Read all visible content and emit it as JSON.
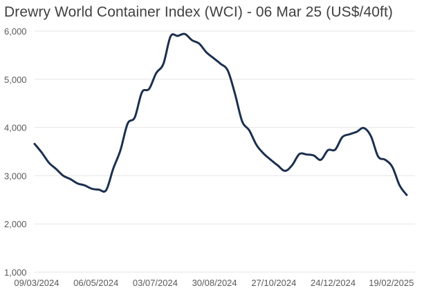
{
  "chart_data": {
    "type": "line",
    "title": "Drewry World Container Index (WCI) - 06 Mar 25 (US$/40ft)",
    "xlabel": "",
    "ylabel": "",
    "ylim": [
      1000,
      6000
    ],
    "xlim": [
      "2024-03-07",
      "2025-03-06"
    ],
    "grid": true,
    "x_tick_labels": [
      "09/03/2024",
      "06/05/2024",
      "03/07/2024",
      "30/08/2024",
      "27/10/2024",
      "24/12/2024",
      "19/02/2025"
    ],
    "x_tick_dates": [
      "2024-03-09",
      "2024-05-06",
      "2024-07-03",
      "2024-08-30",
      "2024-10-27",
      "2024-12-24",
      "2025-02-19"
    ],
    "y_ticks": [
      1000,
      2000,
      3000,
      4000,
      5000,
      6000
    ],
    "y_tick_labels": [
      "1,000",
      "2,000",
      "3,000",
      "4,000",
      "5,000",
      "6,000"
    ],
    "line_color": "#1b2f4e",
    "grid_color": "#e6e6e6",
    "series": [
      {
        "name": "",
        "x": [
          "2024-03-07",
          "2024-03-14",
          "2024-03-21",
          "2024-03-28",
          "2024-04-04",
          "2024-04-11",
          "2024-04-18",
          "2024-04-25",
          "2024-05-02",
          "2024-05-09",
          "2024-05-16",
          "2024-05-23",
          "2024-05-30",
          "2024-06-06",
          "2024-06-13",
          "2024-06-20",
          "2024-06-27",
          "2024-07-04",
          "2024-07-11",
          "2024-07-18",
          "2024-07-25",
          "2024-08-01",
          "2024-08-08",
          "2024-08-15",
          "2024-08-22",
          "2024-08-29",
          "2024-09-05",
          "2024-09-12",
          "2024-09-19",
          "2024-09-26",
          "2024-10-03",
          "2024-10-10",
          "2024-10-17",
          "2024-10-24",
          "2024-10-31",
          "2024-11-07",
          "2024-11-14",
          "2024-11-21",
          "2024-11-28",
          "2024-12-05",
          "2024-12-12",
          "2024-12-19",
          "2024-12-26",
          "2025-01-02",
          "2025-01-09",
          "2025-01-16",
          "2025-01-23",
          "2025-01-30",
          "2025-02-06",
          "2025-02-13",
          "2025-02-20",
          "2025-02-27",
          "2025-03-06"
        ],
        "y": [
          3660,
          3480,
          3270,
          3140,
          3000,
          2930,
          2840,
          2800,
          2730,
          2710,
          2700,
          3150,
          3530,
          4080,
          4210,
          4730,
          4800,
          5130,
          5320,
          5890,
          5900,
          5940,
          5810,
          5740,
          5560,
          5440,
          5320,
          5180,
          4700,
          4130,
          3940,
          3640,
          3460,
          3330,
          3210,
          3100,
          3220,
          3450,
          3440,
          3420,
          3330,
          3530,
          3540,
          3800,
          3860,
          3910,
          3990,
          3820,
          3400,
          3330,
          3180,
          2800,
          2600
        ]
      }
    ]
  }
}
